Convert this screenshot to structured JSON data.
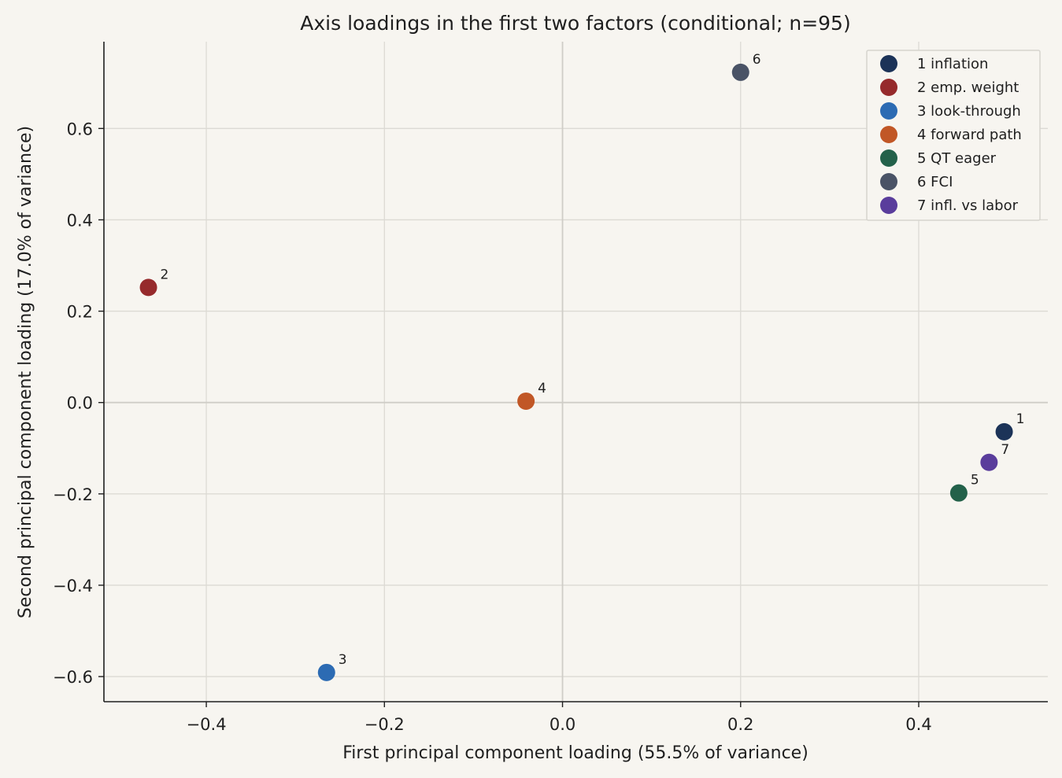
{
  "chart_data": {
    "type": "scatter",
    "title": "Axis loadings in the first two factors (conditional; n=95)",
    "xlabel": "First principal component loading (55.5% of variance)",
    "ylabel": "Second principal component loading (17.0% of variance)",
    "xlim": [
      -0.515,
      0.545
    ],
    "ylim": [
      -0.655,
      0.79
    ],
    "xticks": [
      -0.4,
      -0.2,
      0.0,
      0.2,
      0.4
    ],
    "yticks": [
      -0.6,
      -0.4,
      -0.2,
      0.0,
      0.2,
      0.4,
      0.6
    ],
    "xtick_labels": [
      "−0.4",
      "−0.2",
      "0.0",
      "0.2",
      "0.4"
    ],
    "ytick_labels": [
      "−0.6",
      "−0.4",
      "−0.2",
      "0.0",
      "0.2",
      "0.4",
      "0.6"
    ],
    "grid": true,
    "legend_position": "top-right",
    "points": [
      {
        "label": "1",
        "legend": "1 inflation",
        "x": 0.496,
        "y": -0.064,
        "color": "#1c3358"
      },
      {
        "label": "2",
        "legend": "2 emp. weight",
        "x": -0.465,
        "y": 0.252,
        "color": "#962a2c"
      },
      {
        "label": "3",
        "legend": "3 look-through",
        "x": -0.265,
        "y": -0.591,
        "color": "#2c6bb3"
      },
      {
        "label": "4",
        "legend": "4 forward path",
        "x": -0.041,
        "y": 0.003,
        "color": "#c15726"
      },
      {
        "label": "5",
        "legend": "5 QT eager",
        "x": 0.445,
        "y": -0.198,
        "color": "#23614a"
      },
      {
        "label": "6",
        "legend": "6 FCI",
        "x": 0.2,
        "y": 0.723,
        "color": "#4a5366"
      },
      {
        "label": "7",
        "legend": "7 infl. vs labor",
        "x": 0.479,
        "y": -0.131,
        "color": "#5a3d9c"
      }
    ]
  }
}
